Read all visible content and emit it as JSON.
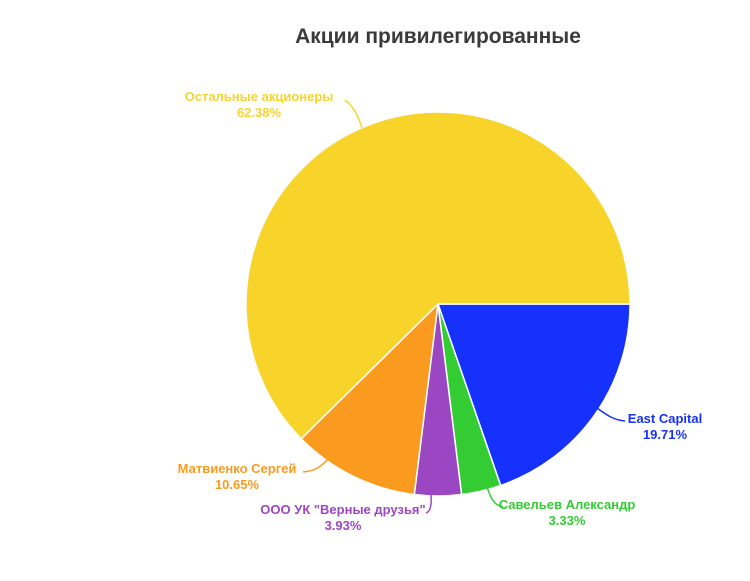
{
  "chart_data": {
    "type": "pie",
    "title": "Акции привилегированные",
    "slices": [
      {
        "name": "East Capital",
        "value": 19.71,
        "label": "19.71%",
        "color": "#1531fb"
      },
      {
        "name": "Савельев Александр",
        "value": 3.33,
        "label": "3.33%",
        "color": "#33cc33"
      },
      {
        "name": "ООО УК \"Верные друзья\"",
        "value": 3.93,
        "label": "3.93%",
        "color": "#9b46c3"
      },
      {
        "name": "Матвиенко Сергей",
        "value": 10.65,
        "label": "10.65%",
        "color": "#fa9a1f"
      },
      {
        "name": "Остальные акционеры",
        "value": 62.38,
        "label": "62.38%",
        "color": "#f8d42b"
      }
    ],
    "legend": "none"
  }
}
